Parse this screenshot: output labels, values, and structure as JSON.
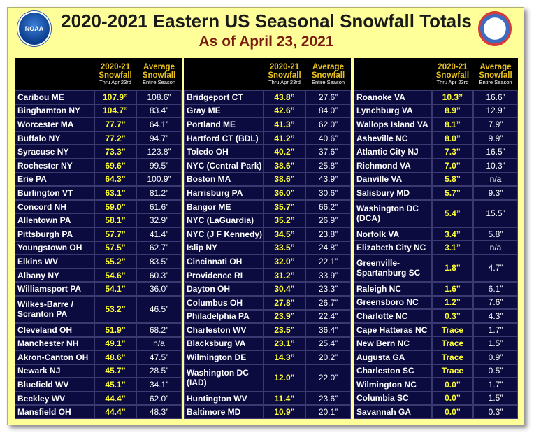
{
  "header": {
    "title": "2020-2021 Eastern US Seasonal Snowfall Totals",
    "subtitle": "As of April 23, 2021",
    "noaa_logo_text": "NOAA"
  },
  "columns": {
    "snow_label_1": "2020-21",
    "snow_label_2": "Snowfall",
    "snow_note": "Thru Apr 23rd",
    "avg_label_1": "Average",
    "avg_label_2": "Snowfall",
    "avg_note": "Entire Season"
  },
  "panels": [
    [
      {
        "city": "Caribou ME",
        "snow": "107.9”",
        "avg": "108.6”"
      },
      {
        "city": "Binghamton NY",
        "snow": "104.7”",
        "avg": "83.4”"
      },
      {
        "city": "Worcester MA",
        "snow": "77.7”",
        "avg": "64.1”"
      },
      {
        "city": "Buffalo NY",
        "snow": "77.2”",
        "avg": "94.7”"
      },
      {
        "city": "Syracuse NY",
        "snow": "73.3”",
        "avg": "123.8”"
      },
      {
        "city": "Rochester NY",
        "snow": "69.6”",
        "avg": "99.5”"
      },
      {
        "city": "Erie PA",
        "snow": "64.3”",
        "avg": "100.9”"
      },
      {
        "city": "Burlington VT",
        "snow": "63.1”",
        "avg": "81.2”"
      },
      {
        "city": "Concord NH",
        "snow": "59.0”",
        "avg": "61.6”"
      },
      {
        "city": "Allentown PA",
        "snow": "58.1”",
        "avg": "32.9”"
      },
      {
        "city": "Pittsburgh PA",
        "snow": "57.7”",
        "avg": "41.4”"
      },
      {
        "city": "Youngstown OH",
        "snow": "57.5”",
        "avg": "62.7”"
      },
      {
        "city": "Elkins WV",
        "snow": "55.2”",
        "avg": "83.5”"
      },
      {
        "city": "Albany NY",
        "snow": "54.6”",
        "avg": "60.3”"
      },
      {
        "city": "Williamsport PA",
        "snow": "54.1”",
        "avg": "36.0”"
      },
      {
        "city": "Wilkes-Barre / Scranton PA",
        "snow": "53.2”",
        "avg": "46.5”"
      },
      {
        "city": "Cleveland OH",
        "snow": "51.9”",
        "avg": "68.2”"
      },
      {
        "city": "Manchester NH",
        "snow": "49.1”",
        "avg": "n/a"
      },
      {
        "city": "Akron-Canton OH",
        "snow": "48.6”",
        "avg": "47.5”"
      },
      {
        "city": "Newark NJ",
        "snow": "45.7”",
        "avg": "28.5”"
      },
      {
        "city": "Bluefield WV",
        "snow": "45.1”",
        "avg": "34.1”"
      },
      {
        "city": "Beckley WV",
        "snow": "44.4”",
        "avg": "62.0”"
      },
      {
        "city": "Mansfield OH",
        "snow": "44.4”",
        "avg": "48.3”"
      }
    ],
    [
      {
        "city": "Bridgeport CT",
        "snow": "43.8”",
        "avg": "27.6”"
      },
      {
        "city": "Gray ME",
        "snow": "42.6”",
        "avg": "84.0”"
      },
      {
        "city": "Portland ME",
        "snow": "41.3”",
        "avg": "62.0”"
      },
      {
        "city": "Hartford CT (BDL)",
        "snow": "41.2”",
        "avg": "40.6”"
      },
      {
        "city": "Toledo OH",
        "snow": "40.2”",
        "avg": "37.6”"
      },
      {
        "city": "NYC (Central Park)",
        "snow": "38.6”",
        "avg": "25.8”"
      },
      {
        "city": "Boston MA",
        "snow": "38.6”",
        "avg": "43.9”"
      },
      {
        "city": "Harrisburg PA",
        "snow": "36.0”",
        "avg": "30.6”"
      },
      {
        "city": "Bangor ME",
        "snow": "35.7”",
        "avg": "66.2”"
      },
      {
        "city": "NYC (LaGuardia)",
        "snow": "35.2”",
        "avg": "26.9”"
      },
      {
        "city": "NYC (J F Kennedy)",
        "snow": "34.5”",
        "avg": "23.8”"
      },
      {
        "city": "Islip NY",
        "snow": "33.5”",
        "avg": "24.8”"
      },
      {
        "city": "Cincinnati OH",
        "snow": "32.0”",
        "avg": "22.1”"
      },
      {
        "city": "Providence RI",
        "snow": "31.2”",
        "avg": "33.9”"
      },
      {
        "city": "Dayton OH",
        "snow": "30.4”",
        "avg": "23.3”"
      },
      {
        "city": "Columbus OH",
        "snow": "27.8”",
        "avg": "26.7”"
      },
      {
        "city": "Philadelphia PA",
        "snow": "23.9”",
        "avg": "22.4”"
      },
      {
        "city": "Charleston WV",
        "snow": "23.5”",
        "avg": "36.4”"
      },
      {
        "city": "Blacksburg VA",
        "snow": "23.1”",
        "avg": "25.4”"
      },
      {
        "city": "Wilmington DE",
        "snow": "14.3”",
        "avg": "20.2”"
      },
      {
        "city": "Washington DC (IAD)",
        "snow": "12.0”",
        "avg": "22.0”"
      },
      {
        "city": "Huntington WV",
        "snow": "11.4”",
        "avg": "23.6”"
      },
      {
        "city": "Baltimore MD",
        "snow": "10.9”",
        "avg": "20.1”"
      }
    ],
    [
      {
        "city": "Roanoke VA",
        "snow": "10.3”",
        "avg": "16.6”"
      },
      {
        "city": "Lynchburg VA",
        "snow": "8.9”",
        "avg": "12.9”"
      },
      {
        "city": "Wallops Island VA",
        "snow": "8.1”",
        "avg": "7.9”"
      },
      {
        "city": "Asheville NC",
        "snow": "8.0”",
        "avg": "9.9”"
      },
      {
        "city": "Atlantic City NJ",
        "snow": "7.3”",
        "avg": "16.5”"
      },
      {
        "city": "Richmond VA",
        "snow": "7.0”",
        "avg": "10.3”"
      },
      {
        "city": "Danville VA",
        "snow": "5.8”",
        "avg": "n/a"
      },
      {
        "city": "Salisbury MD",
        "snow": "5.7”",
        "avg": "9.3”"
      },
      {
        "city": "Washington DC (DCA)",
        "snow": "5.4”",
        "avg": "15.5”"
      },
      {
        "city": "Norfolk VA",
        "snow": "3.4”",
        "avg": "5.8”"
      },
      {
        "city": "Elizabeth City NC",
        "snow": "3.1”",
        "avg": "n/a"
      },
      {
        "city": "Greenville-Spartanburg SC",
        "snow": "1.8”",
        "avg": "4.7”"
      },
      {
        "city": "Raleigh NC",
        "snow": "1.6”",
        "avg": "6.1”"
      },
      {
        "city": "Greensboro NC",
        "snow": "1.2”",
        "avg": "7.6”"
      },
      {
        "city": "Charlotte NC",
        "snow": "0.3”",
        "avg": "4.3”"
      },
      {
        "city": "Cape Hatteras NC",
        "snow": "Trace",
        "avg": "1.7”"
      },
      {
        "city": "New Bern NC",
        "snow": "Trace",
        "avg": "1.5”"
      },
      {
        "city": "Augusta GA",
        "snow": "Trace",
        "avg": "0.9”"
      },
      {
        "city": "Charleston SC",
        "snow": "Trace",
        "avg": "0.5”"
      },
      {
        "city": "Wilmington NC",
        "snow": "0.0”",
        "avg": "1.7”"
      },
      {
        "city": "Columbia SC",
        "snow": "0.0”",
        "avg": "1.5”"
      },
      {
        "city": "Savannah GA",
        "snow": "0.0”",
        "avg": "0.3”"
      }
    ]
  ],
  "tall_rows": [
    [
      15
    ],
    [
      20
    ],
    [
      8,
      11
    ]
  ]
}
